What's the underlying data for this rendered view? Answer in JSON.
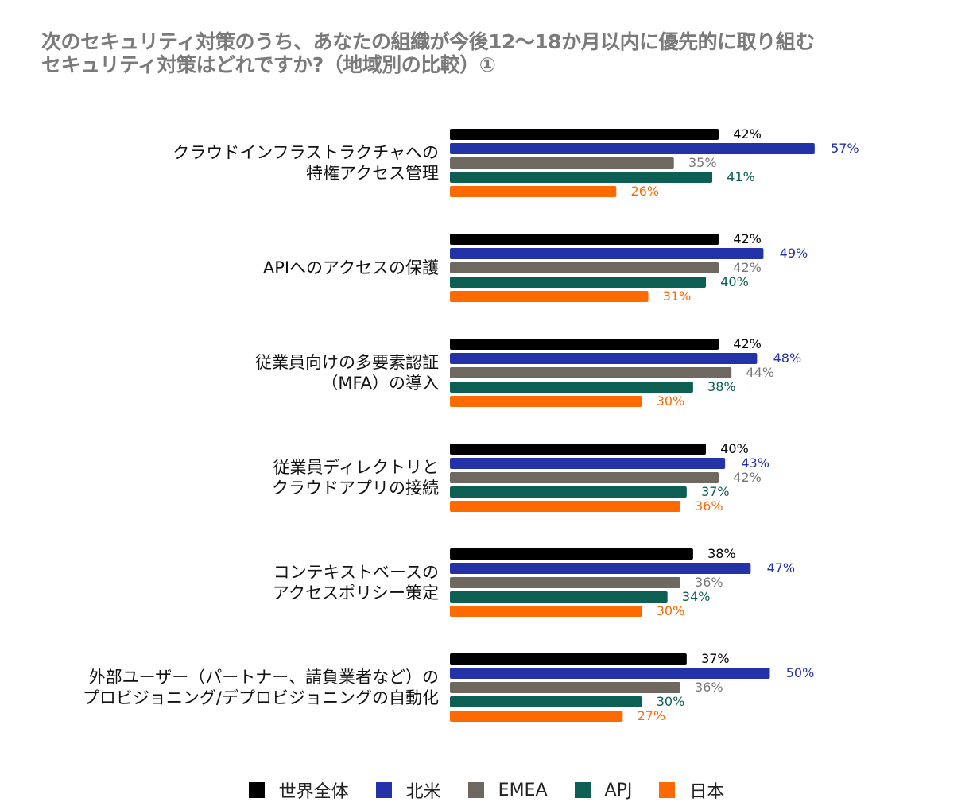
{
  "title": {
    "line1": "次のセキュリティ対策のうち、あなたの組織が今後12〜18か月以内に優先的に取り組む",
    "line2": "セキュリティ対策はどれですか?（地域別の比較）①"
  },
  "chart_data": {
    "type": "bar",
    "orientation": "horizontal",
    "categories": [
      [
        "クラウドインフラストラクチャへの",
        "特権アクセス管理"
      ],
      [
        "APIへのアクセスの保護"
      ],
      [
        "従業員向けの多要素認証",
        "（MFA）の導入"
      ],
      [
        "従業員ディレクトリと",
        "クラウドアプリの接続"
      ],
      [
        "コンテキストベースの",
        "アクセスポリシー策定"
      ],
      [
        "外部ユーザー（パートナー、請負業者など）の",
        "プロビジョニング/デプロビジョニングの自動化"
      ]
    ],
    "series": [
      {
        "name": "世界全体",
        "color": "#000000",
        "values": [
          42,
          42,
          42,
          40,
          38,
          37
        ]
      },
      {
        "name": "北米",
        "color": "#2432a8",
        "values": [
          57,
          49,
          48,
          43,
          47,
          50
        ]
      },
      {
        "name": "EMEA",
        "color": "#6e6861",
        "values": [
          35,
          42,
          44,
          42,
          36,
          36
        ]
      },
      {
        "name": "APJ",
        "color": "#0c5f52",
        "values": [
          41,
          40,
          38,
          37,
          34,
          30
        ]
      },
      {
        "name": "日本",
        "color": "#ff6a00",
        "values": [
          26,
          31,
          30,
          36,
          30,
          27
        ]
      }
    ],
    "value_suffix": "%",
    "xlim": [
      0,
      60
    ],
    "legend": "bottom"
  }
}
